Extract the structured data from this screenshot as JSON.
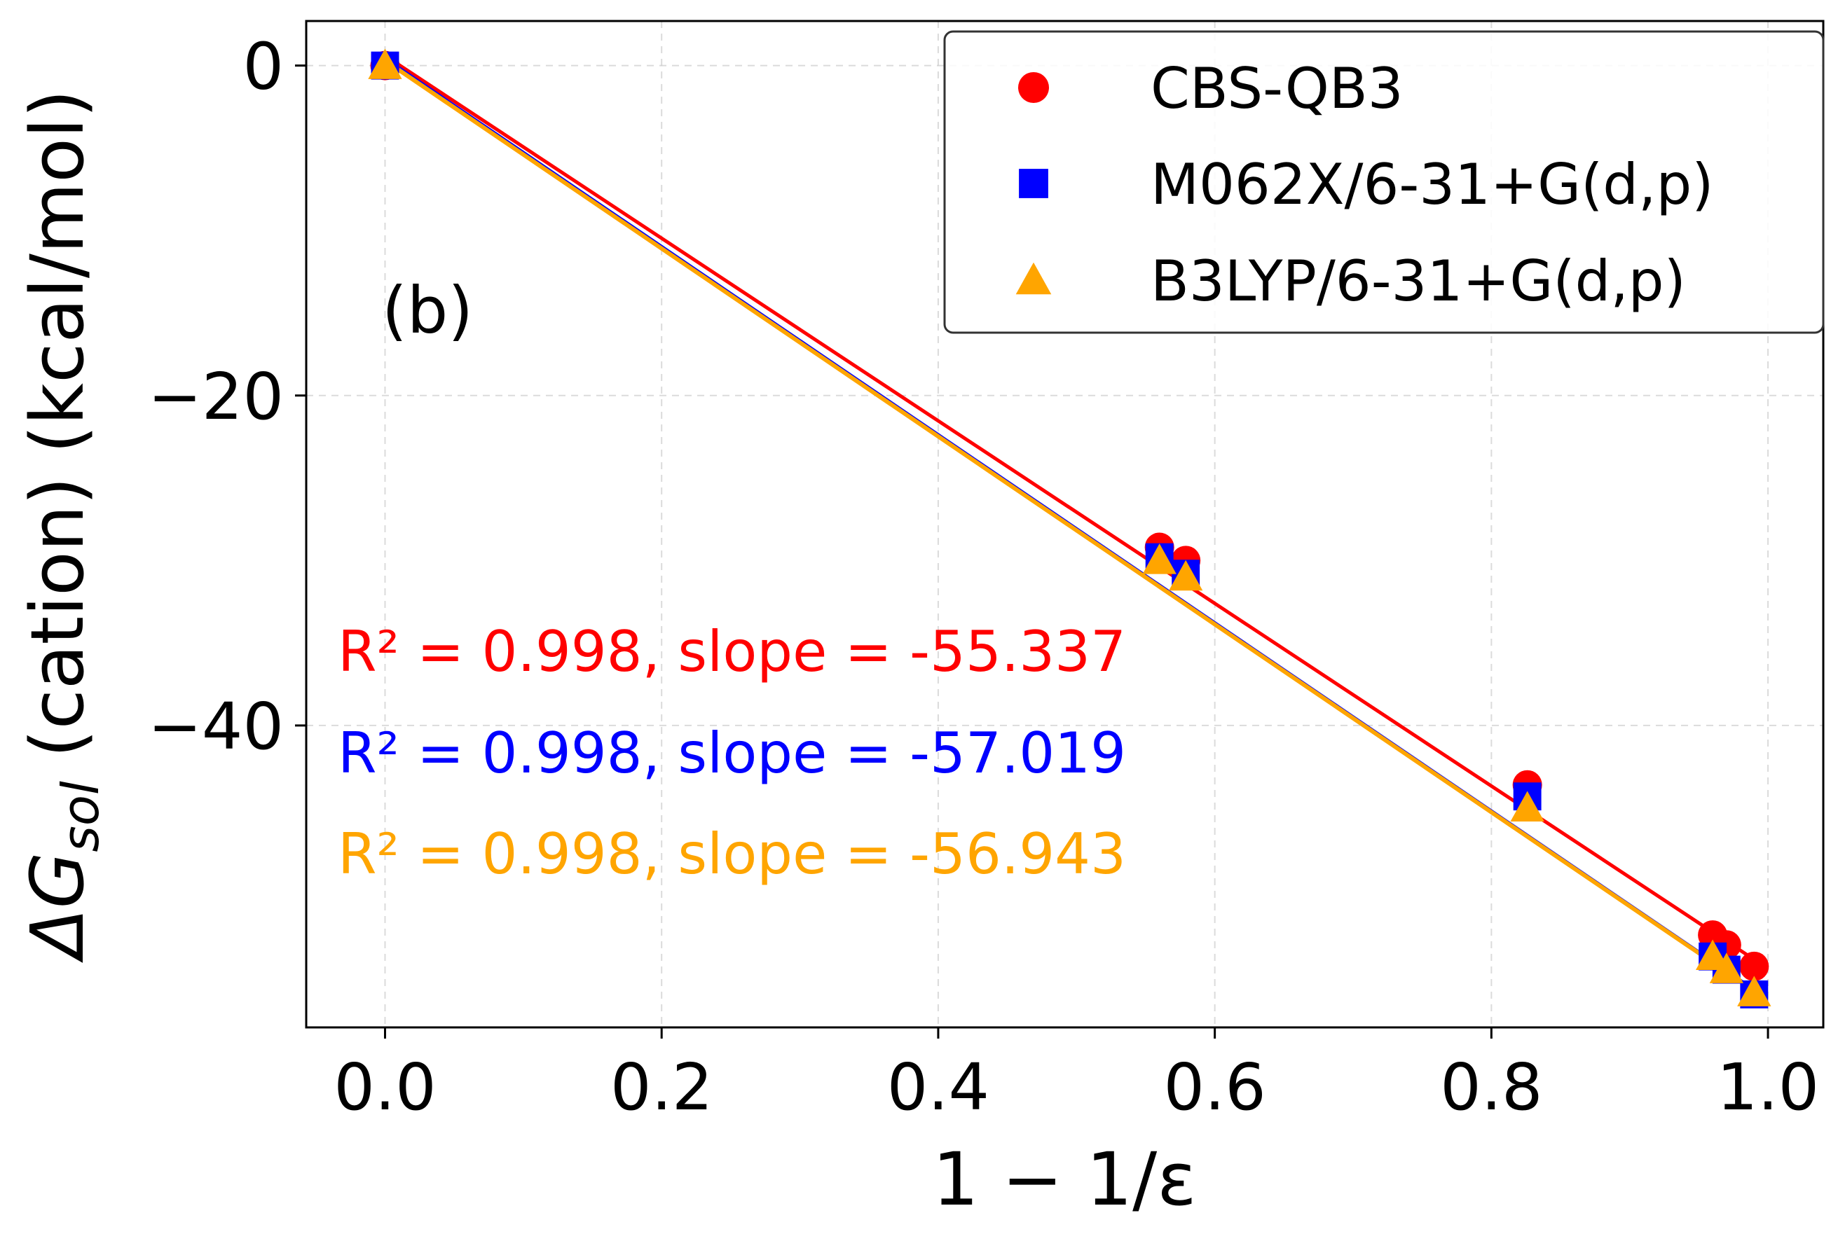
{
  "chart_data": {
    "type": "scatter",
    "panel_label": "(b)",
    "xlabel": "1 − 1/ε",
    "ylabel": {
      "prefix": "ΔG",
      "subscript": "sol",
      "suffix": " (cation) (kcal/mol)"
    },
    "xlim": [
      -0.057,
      1.04
    ],
    "ylim": [
      -58.3,
      2.7
    ],
    "xticks": [
      0.0,
      0.2,
      0.4,
      0.6,
      0.8,
      1.0
    ],
    "xtick_labels": [
      "0.0",
      "0.2",
      "0.4",
      "0.6",
      "0.8",
      "1.0"
    ],
    "yticks": [
      0,
      -20,
      -40
    ],
    "ytick_labels": [
      "0",
      "−20",
      "−40"
    ],
    "grid": true,
    "legend_position": "top-right",
    "series": [
      {
        "name": "CBS-QB3",
        "marker": "circle",
        "color": "#ff0000",
        "x": [
          0.0,
          0.56,
          0.579,
          0.826,
          0.96,
          0.97,
          0.99
        ],
        "y": [
          0.0,
          -29.2,
          -30.0,
          -43.6,
          -52.7,
          -53.3,
          -54.6
        ],
        "fit_slope": -55.337,
        "fit_intercept": 0.6,
        "annotation": "R² = 0.998, slope = -55.337"
      },
      {
        "name": "M062X/6-31+G(d,p)",
        "marker": "square",
        "color": "#0000ff",
        "x": [
          0.0,
          0.56,
          0.579,
          0.826,
          0.96,
          0.97,
          0.99
        ],
        "y": [
          0.0,
          -29.8,
          -30.8,
          -44.3,
          -54.0,
          -54.8,
          -56.3
        ],
        "fit_slope": -57.019,
        "fit_intercept": 0.5,
        "annotation": "R² = 0.998, slope = -57.019"
      },
      {
        "name": "B3LYP/6-31+G(d,p)",
        "marker": "triangle",
        "color": "#ffa500",
        "x": [
          0.0,
          0.56,
          0.579,
          0.826,
          0.96,
          0.97,
          0.99
        ],
        "y": [
          0.0,
          -30.0,
          -31.0,
          -45.0,
          -54.0,
          -54.8,
          -56.2
        ],
        "fit_slope": -56.943,
        "fit_intercept": 0.3,
        "annotation": "R² = 0.998, slope = -56.943"
      }
    ]
  }
}
